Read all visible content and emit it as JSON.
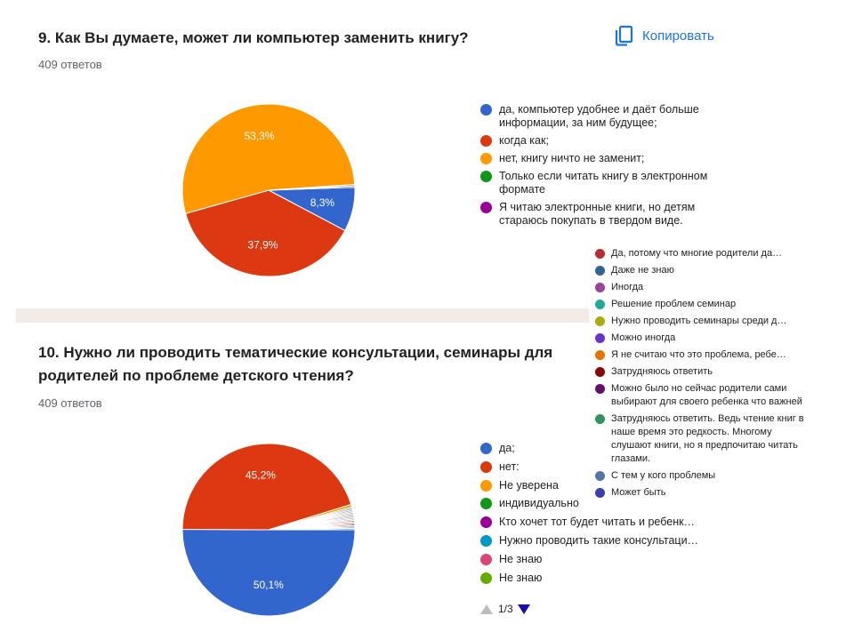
{
  "q9": {
    "title": "9. Как Вы думаете, может ли компьютер заменить книгу?",
    "responses": "409 ответов",
    "copy_label": "Копировать"
  },
  "q10": {
    "title_line1": "10. Нужно ли проводить тематические консультации, семинары для",
    "title_line2": "родителей по проблеме детского чтения?",
    "responses": "409 ответов"
  },
  "pager": {
    "text": "1/3"
  },
  "colors": {
    "blue": "#3366cc",
    "red": "#dc3912",
    "orange": "#ff9900",
    "green": "#109618",
    "purple": "#990099",
    "accent": "#1a73e8"
  },
  "icons": {
    "copy": "copy-icon",
    "prev": "triangle-up-icon",
    "next": "triangle-down-icon"
  },
  "chart_data": [
    {
      "type": "pie",
      "title": "9. Как Вы думаете, может ли компьютер заменить книгу?",
      "series": [
        {
          "name": "да, компьютер удобнее и даёт больше информации, за ним будущее;",
          "value": 8.3,
          "label": "8,3%",
          "color": "#3366cc"
        },
        {
          "name": "когда как;",
          "value": 37.9,
          "label": "37,9%",
          "color": "#dc3912"
        },
        {
          "name": "нет, книгу ничто не заменит;",
          "value": 53.3,
          "label": "53,3%",
          "color": "#ff9900"
        },
        {
          "name": "Только если читать книгу в электронном формате",
          "value": 0.25,
          "label": "",
          "color": "#109618"
        },
        {
          "name": "Я читаю электронные книги, но детям стараюсь покупать в твердом виде.",
          "value": 0.25,
          "label": "",
          "color": "#990099"
        }
      ]
    },
    {
      "type": "pie",
      "title": "10. Нужно ли проводить тематические консультации, семинары для родителей по проблеме детского чтения?",
      "series": [
        {
          "name": "да;",
          "value": 50.1,
          "label": "50,1%",
          "color": "#3366cc"
        },
        {
          "name": "нет:",
          "value": 45.2,
          "label": "45,2%",
          "color": "#dc3912"
        },
        {
          "name": "Не уверена",
          "value": 0.5,
          "label": "",
          "color": "#ff9900"
        },
        {
          "name": "индивидуально",
          "value": 0.25,
          "label": "",
          "color": "#109618"
        },
        {
          "name": "Кто хочет тот будет читать и ребенк…",
          "value": 0.25,
          "label": "",
          "color": "#990099"
        },
        {
          "name": "Нужно проводить такие консультаци…",
          "value": 0.25,
          "label": "",
          "color": "#0099c6"
        },
        {
          "name": "Не знаю",
          "value": 0.25,
          "label": "",
          "color": "#dd4477"
        },
        {
          "name": "Не знаю",
          "value": 0.25,
          "label": "",
          "color": "#66aa00"
        },
        {
          "name": "Да, потому что многие родители да…",
          "value": 0.25,
          "label": "",
          "color": "#b82e2e"
        },
        {
          "name": "Даже не знаю",
          "value": 0.25,
          "label": "",
          "color": "#316395"
        },
        {
          "name": "Иногда",
          "value": 0.25,
          "label": "",
          "color": "#994499"
        },
        {
          "name": "Решение проблем семинар",
          "value": 0.25,
          "label": "",
          "color": "#22aa99"
        },
        {
          "name": "Нужно проводить семинары среди д…",
          "value": 0.25,
          "label": "",
          "color": "#aaaa11"
        },
        {
          "name": "Можно иногда",
          "value": 0.25,
          "label": "",
          "color": "#6633cc"
        },
        {
          "name": "Я не считаю что это проблема, ребе…",
          "value": 0.25,
          "label": "",
          "color": "#e67300"
        },
        {
          "name": "Затрудняюсь ответить",
          "value": 0.25,
          "label": "",
          "color": "#8b0707"
        },
        {
          "name": "Можно было но сейчас родители сами выбирают для своего ребенка что важней",
          "value": 0.25,
          "label": "",
          "color": "#651067"
        },
        {
          "name": "Затрудняюсь ответить. Ведь чтение книг в наше время это редкость. Многому слушают книги, но я предпочитаю читать глазами.",
          "value": 0.25,
          "label": "",
          "color": "#329262"
        },
        {
          "name": "С тем у кого проблемы",
          "value": 0.25,
          "label": "",
          "color": "#5574a6"
        },
        {
          "name": "Может быть",
          "value": 0.25,
          "label": "",
          "color": "#3b3eac"
        }
      ]
    }
  ]
}
